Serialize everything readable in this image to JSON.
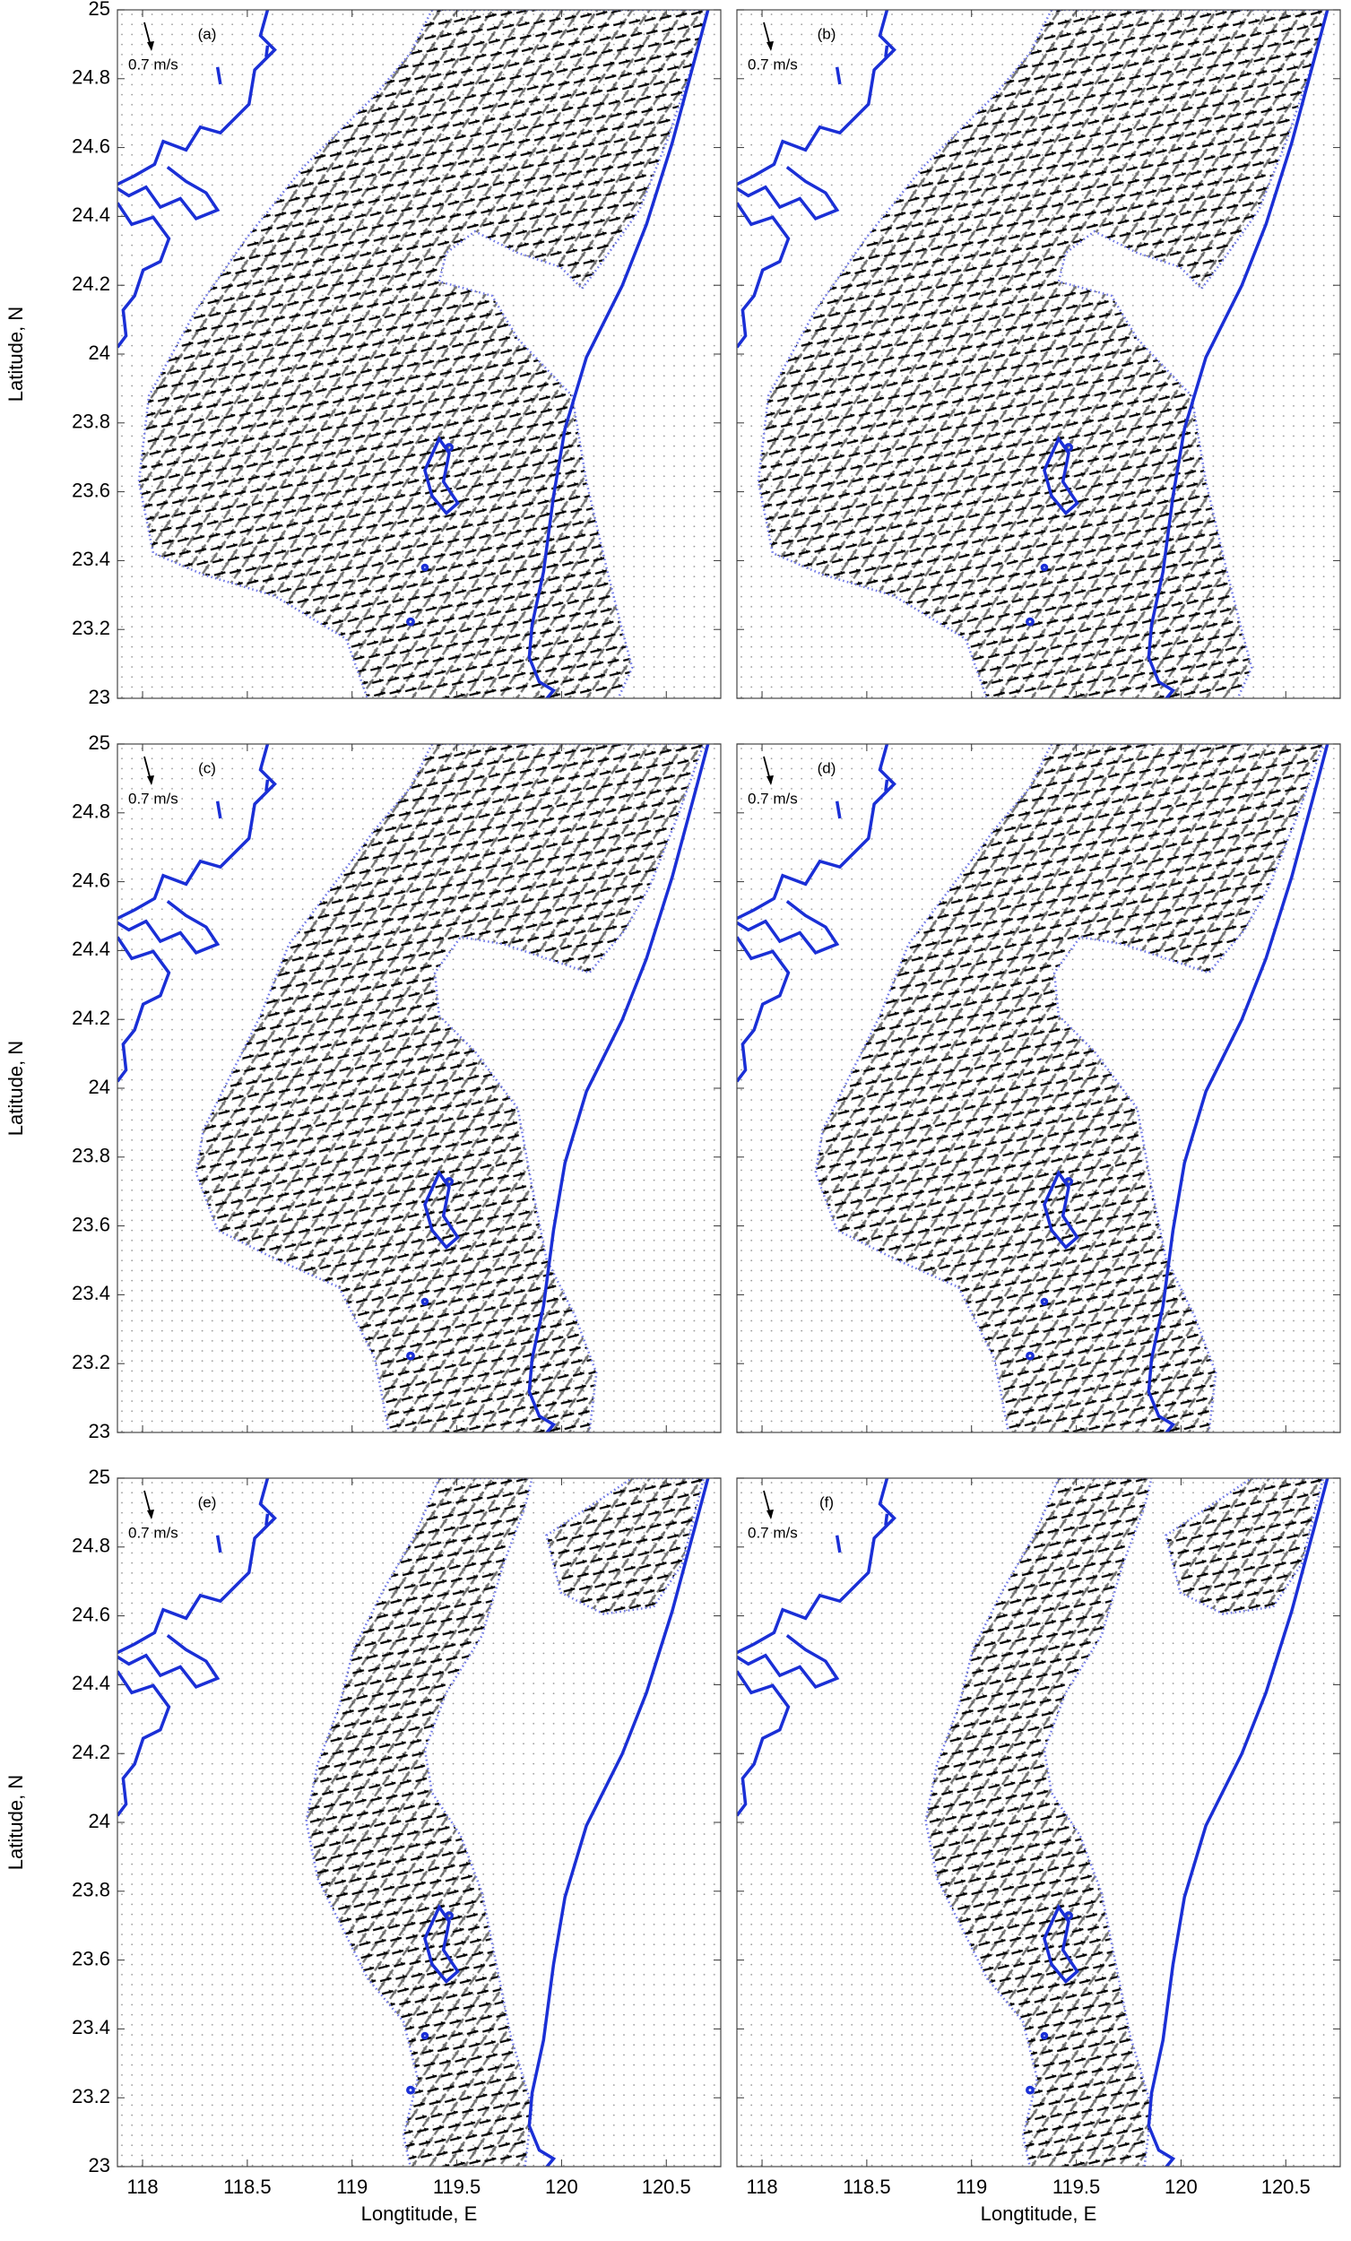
{
  "chart_data": [
    {
      "type": "quiver",
      "panel_label": "(a)",
      "scale_label": "0.7 m/s",
      "region": "wide",
      "y_label": "Latitude, N",
      "xlim": [
        117.88,
        120.76
      ],
      "ylim": [
        23,
        25
      ],
      "xticks": [
        118,
        118.5,
        119,
        119.5,
        120,
        120.5
      ],
      "yticks": [
        23,
        23.2,
        23.4,
        23.6,
        23.8,
        24,
        24.2,
        24.4,
        24.6,
        24.8,
        25
      ],
      "show_xtick_labels": false,
      "show_ytick_labels": true
    },
    {
      "type": "quiver",
      "panel_label": "(b)",
      "scale_label": "0.7 m/s",
      "region": "wide",
      "xlim": [
        117.88,
        120.76
      ],
      "ylim": [
        23,
        25
      ],
      "xticks": [
        118,
        118.5,
        119,
        119.5,
        120,
        120.5
      ],
      "yticks": [
        23,
        23.2,
        23.4,
        23.6,
        23.8,
        24,
        24.2,
        24.4,
        24.6,
        24.8,
        25
      ],
      "show_xtick_labels": false,
      "show_ytick_labels": false
    },
    {
      "type": "quiver",
      "panel_label": "(c)",
      "scale_label": "0.7 m/s",
      "region": "shallow",
      "y_label": "Latitude, N",
      "xlim": [
        117.88,
        120.76
      ],
      "ylim": [
        23,
        25
      ],
      "xticks": [
        118,
        118.5,
        119,
        119.5,
        120,
        120.5
      ],
      "yticks": [
        23,
        23.2,
        23.4,
        23.6,
        23.8,
        24,
        24.2,
        24.4,
        24.6,
        24.8,
        25
      ],
      "show_xtick_labels": false,
      "show_ytick_labels": true
    },
    {
      "type": "quiver",
      "panel_label": "(d)",
      "scale_label": "0.7 m/s",
      "region": "shallow",
      "xlim": [
        117.88,
        120.76
      ],
      "ylim": [
        23,
        25
      ],
      "xticks": [
        118,
        118.5,
        119,
        119.5,
        120,
        120.5
      ],
      "yticks": [
        23,
        23.2,
        23.4,
        23.6,
        23.8,
        24,
        24.2,
        24.4,
        24.6,
        24.8,
        25
      ],
      "show_xtick_labels": false,
      "show_ytick_labels": false
    },
    {
      "type": "quiver",
      "panel_label": "(e)",
      "scale_label": "0.7 m/s",
      "region": "patchy",
      "y_label": "Latitude, N",
      "x_label": "Longtitude, E",
      "xlim": [
        117.88,
        120.76
      ],
      "ylim": [
        23,
        25
      ],
      "xticks": [
        118,
        118.5,
        119,
        119.5,
        120,
        120.5
      ],
      "yticks": [
        23,
        23.2,
        23.4,
        23.6,
        23.8,
        24,
        24.2,
        24.4,
        24.6,
        24.8,
        25
      ],
      "show_xtick_labels": true,
      "show_ytick_labels": true
    },
    {
      "type": "quiver",
      "panel_label": "(f)",
      "scale_label": "0.7 m/s",
      "region": "patchy",
      "x_label": "Longtitude, E",
      "xlim": [
        117.88,
        120.76
      ],
      "ylim": [
        23,
        25
      ],
      "xticks": [
        118,
        118.5,
        119,
        119.5,
        120,
        120.5
      ],
      "yticks": [
        23,
        23.2,
        23.4,
        23.6,
        23.8,
        24,
        24.2,
        24.4,
        24.6,
        24.8,
        25
      ],
      "show_xtick_labels": true,
      "show_ytick_labels": false
    }
  ]
}
